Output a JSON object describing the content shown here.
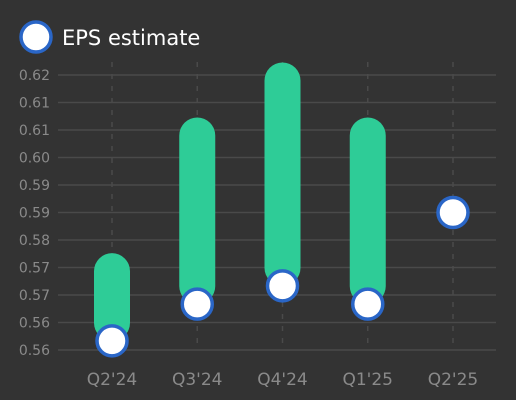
{
  "colors": {
    "background": "#333333",
    "bar": "#2ecc97",
    "marker_fill": "#ffffff",
    "marker_stroke": "#2a66c7",
    "grid": "#4a4a4a",
    "tick_text": "#8a8a8a",
    "legend_text": "#ffffff"
  },
  "chart_data": {
    "type": "bar",
    "categories": [
      "Q2'24",
      "Q3'24",
      "Q4'24",
      "Q1'25",
      "Q2'25"
    ],
    "series": [
      {
        "name": "EPS estimate",
        "values": [
          0.555,
          0.565,
          0.57,
          0.565,
          0.59
        ]
      }
    ],
    "bar_top": [
      0.574,
      0.611,
      0.626,
      0.611,
      null
    ],
    "y_tick_labels": [
      "0.56",
      "0.56",
      "0.57",
      "0.57",
      "0.58",
      "0.59",
      "0.59",
      "0.60",
      "0.61",
      "0.61",
      "0.62"
    ],
    "ylim": [
      0.5525,
      0.6275
    ],
    "legend": {
      "position": "top-left",
      "entries": [
        "EPS estimate"
      ]
    },
    "grid": {
      "horizontal": true,
      "vertical_dashed": true
    }
  }
}
